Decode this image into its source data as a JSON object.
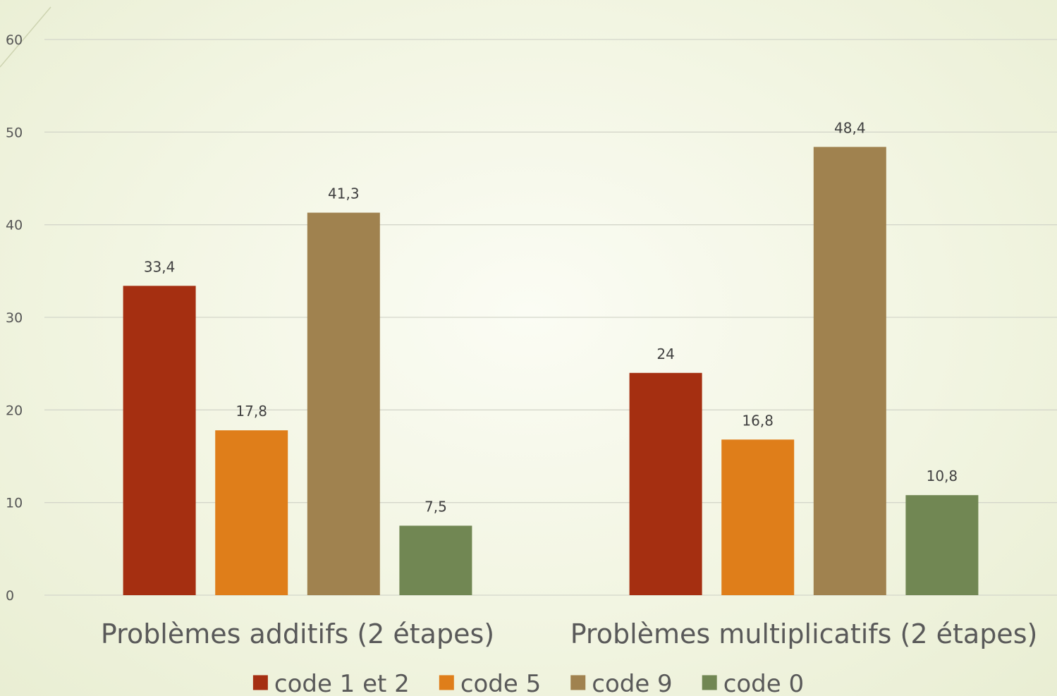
{
  "chart_data": {
    "type": "bar",
    "categories": [
      "Problèmes additifs (2 étapes)",
      "Problèmes multiplicatifs (2 étapes)"
    ],
    "series": [
      {
        "name": "code 1 et 2",
        "values": [
          33.4,
          24
        ],
        "labels": [
          "33,4",
          "24"
        ],
        "color": "#a52f11"
      },
      {
        "name": "code 5",
        "values": [
          17.8,
          16.8
        ],
        "labels": [
          "17,8",
          "16,8"
        ],
        "color": "#df7e1a"
      },
      {
        "name": "code 9",
        "values": [
          41.3,
          48.4
        ],
        "labels": [
          "41,3",
          "48,4"
        ],
        "color": "#a0824f"
      },
      {
        "name": "code 0",
        "values": [
          7.5,
          10.8
        ],
        "labels": [
          "7,5",
          "10,8"
        ],
        "color": "#718753"
      }
    ],
    "yticks": [
      0,
      10,
      20,
      30,
      40,
      50,
      60
    ],
    "ylim": [
      0,
      60
    ],
    "grid": true,
    "legend": "bottom",
    "gridline_color": "#d4d6ca"
  }
}
